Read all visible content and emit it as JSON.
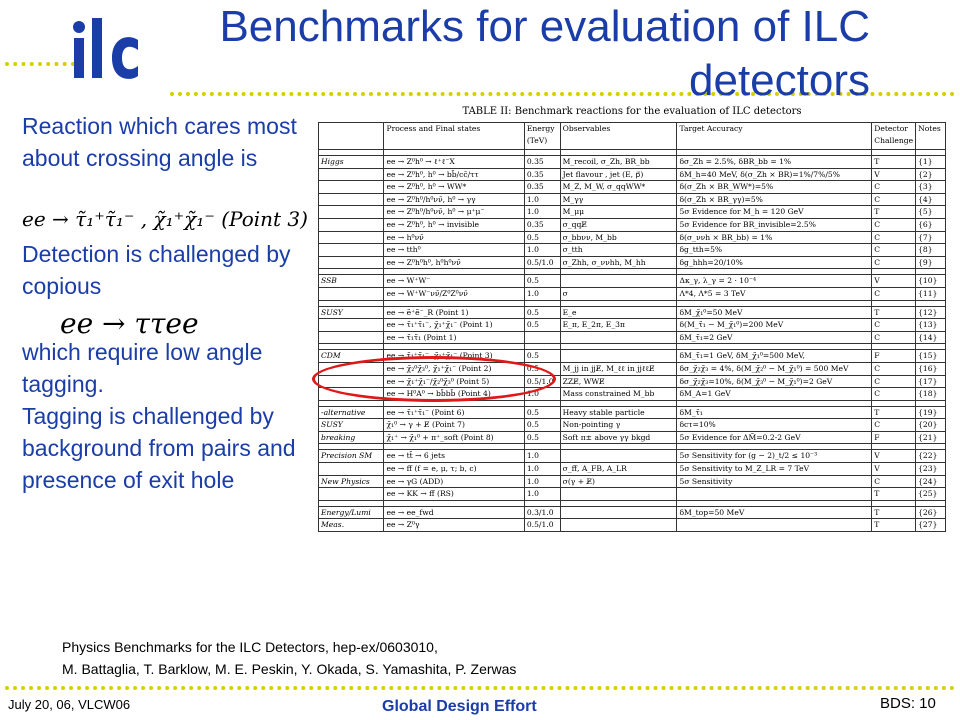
{
  "logo_text": "ilc",
  "title": "Benchmarks for evaluation of ILC detectors",
  "left": {
    "para1": "Reaction which cares most about crossing angle is",
    "math1": "ee → τ̃₁⁺τ̃₁⁻ , χ̃₁⁺χ̃₁⁻ (Point 3)",
    "para2": "Detection is challenged by copious",
    "math2": "ee → ττee",
    "para3": "which require low angle tagging.",
    "para4": "Tagging is challenged by background from pairs and presence of exit hole"
  },
  "table": {
    "caption": "TABLE II: Benchmark reactions for the evaluation of ILC detectors",
    "headers": [
      "",
      "Process and Final states",
      "Energy (TeV)",
      "Observables",
      "Target Accuracy",
      "Detector Challenge",
      "Notes"
    ],
    "rows": [
      [
        "Higgs",
        "ee → Z⁰h⁰ → ℓ⁺ℓ⁻X",
        "0.35",
        "M_recoil, σ_Zh, BR_bb",
        "δσ_Zh = 2.5%, δBR_bb = 1%",
        "T",
        "{1}"
      ],
      [
        "",
        "ee → Z⁰h⁰, h⁰ → bb̄/cc̄/ττ",
        "0.35",
        "Jet flavour , jet (E, p⃗)",
        "δM_h=40 MeV, δ(σ_Zh × BR)=1%/7%/5%",
        "V",
        "{2}"
      ],
      [
        "",
        "ee → Z⁰h⁰, h⁰ → WW*",
        "0.35",
        "M_Z, M_W, σ_qqWW*",
        "δ(σ_Zh × BR_WW*)=5%",
        "C",
        "{3}"
      ],
      [
        "",
        "ee → Z⁰h⁰/h⁰νν̄, h⁰ → γγ",
        "1.0",
        "M_γγ",
        "δ(σ_Zh × BR_γγ)=5%",
        "C",
        "{4}"
      ],
      [
        "",
        "ee → Z⁰h⁰/h⁰νν̄, h⁰ → μ⁺μ⁻",
        "1.0",
        "M_μμ",
        "5σ Evidence for M_h = 120 GeV",
        "T",
        "{5}"
      ],
      [
        "",
        "ee → Z⁰h⁰, h⁰ → invisible",
        "0.35",
        "σ_qqE̸",
        "5σ Evidence for BR_invisible=2.5%",
        "C",
        "{6}"
      ],
      [
        "",
        "ee → h⁰νν̄",
        "0.5",
        "σ_bbνν, M_bb",
        "δ(σ_ννh × BR_bb) = 1%",
        "C",
        "{7}"
      ],
      [
        "",
        "ee → tth⁰",
        "1.0",
        "σ_tth",
        "δg_tth=5%",
        "C",
        "{8}"
      ],
      [
        "",
        "ee → Z⁰h⁰h⁰, h⁰h⁰νν̄",
        "0.5/1.0",
        "σ_Zhh, σ_ννhh, M_hh",
        "δg_hhh=20/10%",
        "C",
        "{9}"
      ],
      [
        "SSB",
        "ee → W⁺W⁻",
        "0.5",
        "",
        "Δκ_γ, λ_γ = 2 · 10⁻⁴",
        "V",
        "{10}"
      ],
      [
        "",
        "ee → W⁺W⁻νν̄/Z⁰Z⁰νν̄",
        "1.0",
        "σ",
        "Λ*4, Λ*5 = 3 TeV",
        "C",
        "{11}"
      ],
      [
        "SUSY",
        "ee → ẽ⁺ẽ⁻_R (Point 1)",
        "0.5",
        "E_e",
        "δM_χ̃₁⁰=50 MeV",
        "T",
        "{12}"
      ],
      [
        "",
        "ee → τ̃₁⁺τ̃₁⁻, χ̃₁⁺χ̃₁⁻ (Point 1)",
        "0.5",
        "E_π, E_2π, E_3π",
        "δ(M_τ̃₁ − M_χ̃₁⁰)=200 MeV",
        "C",
        "{13}"
      ],
      [
        "",
        "ee → τ̃₁τ̃₁ (Point 1)",
        "",
        "",
        "δM_τ̃₁=2 GeV",
        "C",
        "{14}"
      ],
      [
        "CDM",
        "ee → τ̃₁⁺τ̃₁⁻, χ̃₁⁺χ̃₁⁻ (Point 3)",
        "0.5",
        "",
        "δM_τ̃₁=1 GeV, δM_χ̃₁⁰=500 MeV,",
        "F",
        "{15}"
      ],
      [
        "",
        "ee → χ̃₂⁰χ̃₃⁰, χ̃₁⁺χ̃₁⁻ (Point 2)",
        "0.5",
        "M_jj in jjE̸, M_ℓℓ in jjℓℓE̸",
        "δσ_χ̃₂χ̃₃ = 4%, δ(M_χ̃₂⁰ − M_χ̃₁⁰) = 500 MeV",
        "C",
        "{16}"
      ],
      [
        "",
        "ee → χ̃₁⁺χ̃₁⁻/χ̃₂⁰χ̃₃⁰ (Point 5)",
        "0.5/1.0",
        "ZZE̸, WWE̸",
        "δσ_χ̃₂χ̃₃=10%, δ(M_χ̃₃⁰ − M_χ̃₁⁰)=2 GeV",
        "C",
        "{17}"
      ],
      [
        "",
        "ee → H⁰A⁰ → bb̄bb̄ (Point 4)",
        "1.0",
        "Mass constrained M_bb",
        "δM_A=1 GeV",
        "C",
        "{18}"
      ],
      [
        "-alternative",
        "ee → τ̃₁⁺τ̃₁⁻ (Point 6)",
        "0.5",
        "Heavy stable particle",
        "δM_τ̃₁",
        "T",
        "{19}"
      ],
      [
        "SUSY",
        "χ̃₁⁰ → γ + E̸ (Point 7)",
        "0.5",
        "Non-pointing γ",
        "δcτ=10%",
        "C",
        "{20}"
      ],
      [
        "breaking",
        "χ̃₁⁺ → χ̃₁⁰ + π⁺_soft (Point 8)",
        "0.5",
        "Soft π± above γγ bkgd",
        "5σ Evidence for ΔM̃=0.2-2 GeV",
        "F",
        "{21}"
      ],
      [
        "Precision SM",
        "ee → tt̄ → 6 jets",
        "1.0",
        "",
        "5σ Sensitivity for (g − 2)_t/2 ≤ 10⁻³",
        "V",
        "{22}"
      ],
      [
        "",
        "ee → ff̄ (f = e, μ, τ; b, c)",
        "1.0",
        "σ_ff̄, A_FB, A_LR",
        "5σ Sensitivity to M_Z_LR = 7 TeV",
        "V",
        "{23}"
      ],
      [
        "New Physics",
        "ee → γG (ADD)",
        "1.0",
        "σ(γ + E̸)",
        "5σ Sensitivity",
        "C",
        "{24}"
      ],
      [
        "",
        "ee → KK → ff̄ (RS)",
        "1.0",
        "",
        "",
        "T",
        "{25}"
      ],
      [
        "Energy/Lumi",
        "ee → ee_fwd",
        "0.3/1.0",
        "",
        "δM_top=50 MeV",
        "T",
        "{26}"
      ],
      [
        "Meas.",
        "ee → Z⁰γ",
        "0.5/1.0",
        "",
        "",
        "T",
        "{27}"
      ]
    ]
  },
  "reference": {
    "line1": "Physics Benchmarks for the ILC Detectors, hep-ex/0603010,",
    "line2": "M. Battaglia, T. Barklow, M. E. Peskin, Y. Okada, S. Yamashita, P. Zerwas"
  },
  "footer": {
    "date": "July 20, 06, VLCW06",
    "center": "Global Design Effort",
    "page": "BDS: 10"
  },
  "colors": {
    "title_blue": "#1a3da8",
    "dot_yellow": "#d4d000",
    "highlight_red": "#e01818"
  }
}
